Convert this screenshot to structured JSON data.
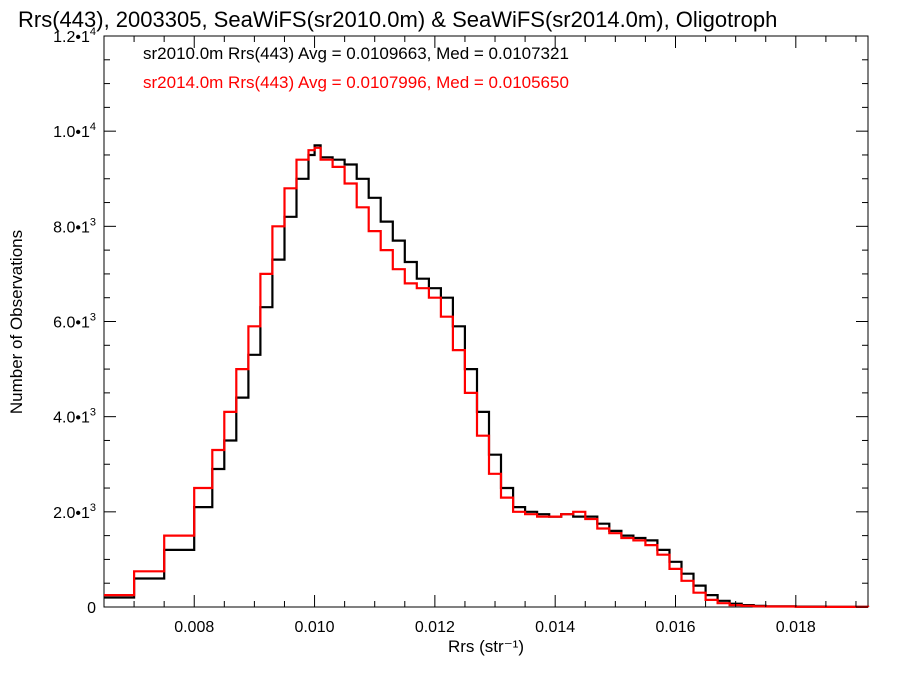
{
  "chart_data": {
    "type": "line",
    "title": "Rrs(443), 2003305, SeaWiFS(sr2010.0m) & SeaWiFS(sr2014.0m), Oligotroph",
    "xlabel": "Rrs (str⁻¹)",
    "ylabel": "Number of Observations",
    "xlim": [
      0.0065,
      0.0192
    ],
    "ylim": [
      0,
      12000
    ],
    "x_ticks": [
      {
        "value": 0.008,
        "label": "0.008"
      },
      {
        "value": 0.01,
        "label": "0.010"
      },
      {
        "value": 0.012,
        "label": "0.012"
      },
      {
        "value": 0.014,
        "label": "0.014"
      },
      {
        "value": 0.016,
        "label": "0.016"
      },
      {
        "value": 0.018,
        "label": "0.018"
      }
    ],
    "y_ticks": [
      {
        "value": 0,
        "mantissa": "0",
        "exponent": ""
      },
      {
        "value": 2000,
        "mantissa": "2.0•1",
        "exponent": "3"
      },
      {
        "value": 4000,
        "mantissa": "4.0•1",
        "exponent": "3"
      },
      {
        "value": 6000,
        "mantissa": "6.0•1",
        "exponent": "3"
      },
      {
        "value": 8000,
        "mantissa": "8.0•1",
        "exponent": "3"
      },
      {
        "value": 10000,
        "mantissa": "1.0•1",
        "exponent": "4"
      },
      {
        "value": 12000,
        "mantissa": "1.2•1",
        "exponent": "4"
      }
    ],
    "series": [
      {
        "name": "sr2010.0m",
        "legend": "sr2010.0m Rrs(443) Avg = 0.0109663, Med = 0.0107321",
        "color": "#000000",
        "x": [
          0.0065,
          0.007,
          0.0075,
          0.008,
          0.0083,
          0.0085,
          0.0087,
          0.0089,
          0.0091,
          0.0093,
          0.0095,
          0.0097,
          0.0099,
          0.01,
          0.0101,
          0.0103,
          0.0105,
          0.0107,
          0.0109,
          0.0111,
          0.0113,
          0.0115,
          0.0117,
          0.0119,
          0.0121,
          0.0123,
          0.0125,
          0.0127,
          0.0129,
          0.0131,
          0.0133,
          0.0135,
          0.0137,
          0.0139,
          0.0141,
          0.0143,
          0.0145,
          0.0147,
          0.0149,
          0.0151,
          0.0153,
          0.0155,
          0.0157,
          0.0159,
          0.0161,
          0.0163,
          0.0165,
          0.0167,
          0.0169,
          0.0171,
          0.0173,
          0.0175,
          0.018,
          0.0185,
          0.0192
        ],
        "y": [
          200,
          600,
          1200,
          2100,
          2900,
          3500,
          4400,
          5300,
          6300,
          7300,
          8200,
          9000,
          9500,
          9700,
          9450,
          9400,
          9300,
          9000,
          8600,
          8100,
          7700,
          7250,
          6900,
          6700,
          6500,
          5900,
          5000,
          4100,
          3200,
          2500,
          2100,
          2000,
          1950,
          1900,
          1950,
          1900,
          1900,
          1750,
          1600,
          1500,
          1450,
          1400,
          1200,
          950,
          700,
          450,
          250,
          130,
          70,
          40,
          25,
          15,
          8,
          3,
          0
        ]
      },
      {
        "name": "sr2014.0m",
        "legend": "sr2014.0m Rrs(443) Avg = 0.0107996, Med = 0.0105650",
        "color": "#ff0000",
        "x": [
          0.0065,
          0.007,
          0.0075,
          0.008,
          0.0083,
          0.0085,
          0.0087,
          0.0089,
          0.0091,
          0.0093,
          0.0095,
          0.0097,
          0.0099,
          0.01,
          0.0101,
          0.0103,
          0.0105,
          0.0107,
          0.0109,
          0.0111,
          0.0113,
          0.0115,
          0.0117,
          0.0119,
          0.0121,
          0.0123,
          0.0125,
          0.0127,
          0.0129,
          0.0131,
          0.0133,
          0.0135,
          0.0137,
          0.0139,
          0.0141,
          0.0143,
          0.0145,
          0.0147,
          0.0149,
          0.0151,
          0.0153,
          0.0155,
          0.0157,
          0.0159,
          0.0161,
          0.0163,
          0.0165,
          0.0167,
          0.0169,
          0.0171,
          0.0173,
          0.0175,
          0.018,
          0.0185,
          0.0192
        ],
        "y": [
          250,
          750,
          1500,
          2500,
          3300,
          4100,
          5000,
          5900,
          7000,
          8000,
          8800,
          9400,
          9600,
          9650,
          9400,
          9250,
          8900,
          8400,
          7900,
          7500,
          7100,
          6800,
          6700,
          6500,
          6100,
          5400,
          4500,
          3600,
          2800,
          2300,
          2000,
          1950,
          1900,
          1900,
          1950,
          2000,
          1850,
          1650,
          1550,
          1450,
          1400,
          1300,
          1100,
          800,
          550,
          300,
          150,
          80,
          40,
          25,
          15,
          10,
          5,
          2,
          0
        ]
      }
    ],
    "grid": false,
    "legend_position": "top-left"
  }
}
